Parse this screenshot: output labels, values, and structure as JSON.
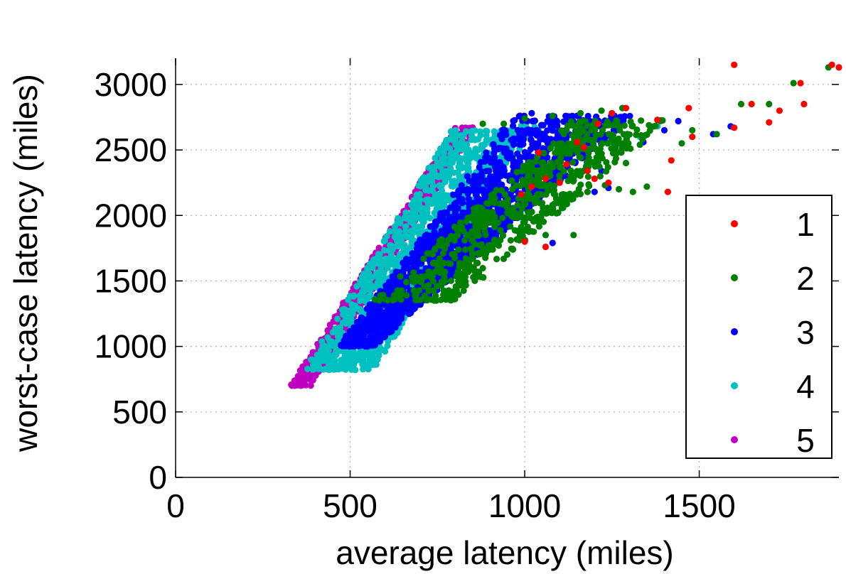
{
  "chart_data": {
    "type": "scatter",
    "title": "",
    "xlabel": "average latency (miles)",
    "ylabel": "worst-case latency (miles)",
    "xlim": [
      0,
      1900
    ],
    "ylim": [
      0,
      3200
    ],
    "xticks": [
      0,
      500,
      1000,
      1500
    ],
    "yticks": [
      0,
      500,
      1000,
      1500,
      2000,
      2500,
      3000
    ],
    "xtick_labels": [
      "0",
      "500",
      "1000",
      "1500"
    ],
    "ytick_labels": [
      "0",
      "500",
      "1000",
      "1500",
      "2000",
      "2500",
      "3000"
    ],
    "grid": true,
    "legend_position": "right",
    "series": [
      {
        "name": "1",
        "color": "#ff0000",
        "points": [
          [
            1600,
            3150
          ],
          [
            1880,
            3150
          ],
          [
            1900,
            3130
          ],
          [
            1790,
            3010
          ],
          [
            1800,
            2850
          ],
          [
            1700,
            2710
          ],
          [
            1730,
            2800
          ],
          [
            1650,
            2850
          ],
          [
            1600,
            2670
          ],
          [
            1470,
            2820
          ],
          [
            1480,
            2600
          ],
          [
            1420,
            2420
          ],
          [
            1380,
            2730
          ],
          [
            1290,
            2820
          ],
          [
            1250,
            2780
          ],
          [
            1210,
            2700
          ],
          [
            1170,
            2520
          ],
          [
            1150,
            2560
          ],
          [
            1120,
            2390
          ],
          [
            1180,
            2340
          ],
          [
            1200,
            2280
          ],
          [
            1240,
            2250
          ],
          [
            1100,
            2250
          ],
          [
            1060,
            2280
          ],
          [
            1020,
            2220
          ],
          [
            1040,
            2480
          ],
          [
            1410,
            2180
          ],
          [
            1000,
            1800
          ],
          [
            1060,
            1760
          ],
          [
            990,
            2160
          ]
        ]
      },
      {
        "name": "2",
        "color": "#008000",
        "generator": "band",
        "count": 650,
        "points": [
          [
            1870,
            3130
          ],
          [
            1770,
            3010
          ],
          [
            1700,
            2850
          ],
          [
            1620,
            2850
          ],
          [
            1550,
            2620
          ],
          [
            1480,
            2650
          ],
          [
            1370,
            2680
          ],
          [
            1280,
            2820
          ],
          [
            1220,
            2800
          ],
          [
            1160,
            2780
          ],
          [
            1080,
            2760
          ],
          [
            1000,
            2740
          ],
          [
            940,
            2700
          ],
          [
            880,
            2700
          ],
          [
            1350,
            2220
          ],
          [
            1310,
            2180
          ],
          [
            1270,
            2200
          ],
          [
            1180,
            2180
          ],
          [
            1140,
            1850
          ],
          [
            1060,
            1850
          ],
          [
            980,
            2080
          ],
          [
            1080,
            2080
          ],
          [
            1230,
            2230
          ],
          [
            1290,
            2400
          ],
          [
            1330,
            2540
          ],
          [
            1450,
            2550
          ]
        ]
      },
      {
        "name": "3",
        "color": "#0000ff",
        "generator": "band",
        "count": 1600,
        "points": [
          [
            1590,
            2680
          ],
          [
            1540,
            2620
          ],
          [
            1440,
            2720
          ],
          [
            1400,
            2650
          ],
          [
            1340,
            2560
          ],
          [
            1260,
            2520
          ],
          [
            1150,
            2760
          ],
          [
            1020,
            2780
          ],
          [
            1240,
            2210
          ],
          [
            1200,
            2180
          ],
          [
            1100,
            2120
          ],
          [
            1080,
            1790
          ],
          [
            1000,
            1960
          ],
          [
            1220,
            2340
          ]
        ]
      },
      {
        "name": "4",
        "color": "#00c0c0",
        "generator": "band",
        "count": 1300,
        "points": [
          [
            1330,
            2600
          ],
          [
            1380,
            2680
          ],
          [
            1140,
            2520
          ],
          [
            1040,
            2650
          ]
        ]
      },
      {
        "name": "5",
        "color": "#c000c0",
        "generator": "band",
        "count": 700,
        "points": []
      }
    ]
  }
}
